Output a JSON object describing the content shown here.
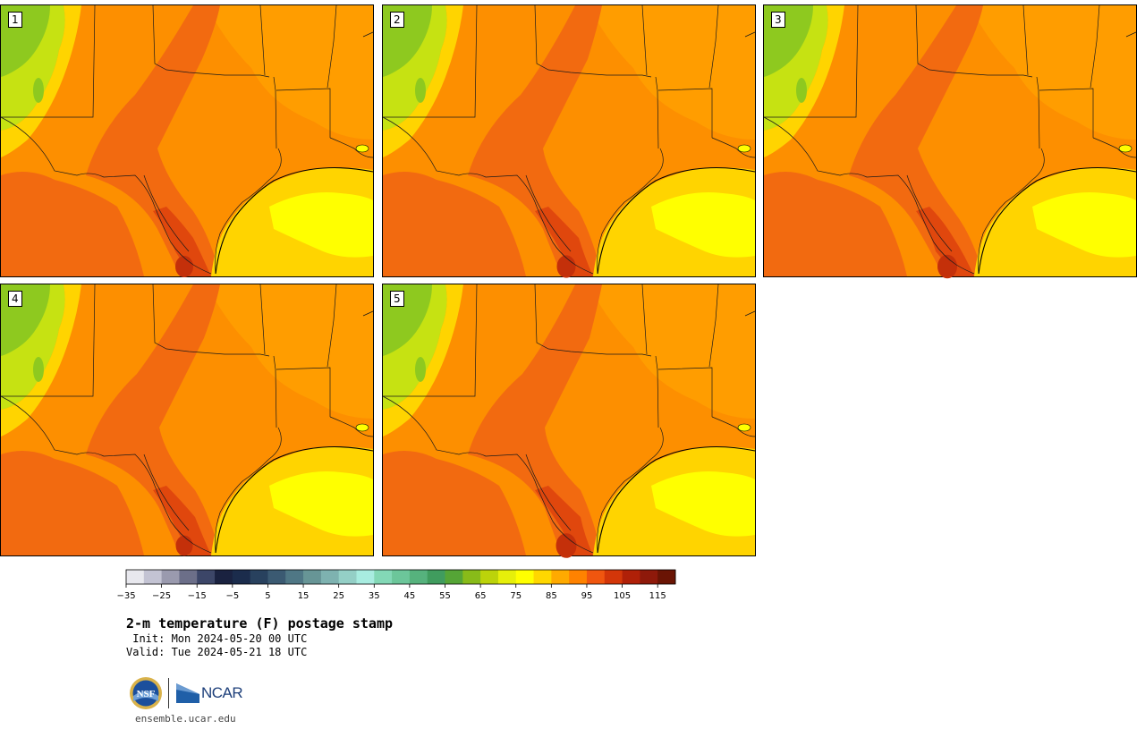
{
  "panels": [
    {
      "label": "1"
    },
    {
      "label": "2"
    },
    {
      "label": "3"
    },
    {
      "label": "4"
    },
    {
      "label": "5"
    }
  ],
  "colorbar": {
    "colors": [
      "#e8e8ee",
      "#c3c3d3",
      "#9a9aae",
      "#6c6f89",
      "#3c4668",
      "#1a2240",
      "#1b2c4c",
      "#28415e",
      "#3b5a72",
      "#4f7785",
      "#679596",
      "#7eb2b0",
      "#94cfc6",
      "#a8ece0",
      "#83d8b6",
      "#6cc69a",
      "#56b27d",
      "#409c5e",
      "#55a536",
      "#88bb19",
      "#bcd30a",
      "#e6ef0a",
      "#ffff00",
      "#ffd700",
      "#ffaa00",
      "#ff8200",
      "#f0560f",
      "#d33609",
      "#b02008",
      "#8e190a",
      "#6a1404"
    ],
    "ticks": [
      "−35",
      "−25",
      "−15",
      "−5",
      "5",
      "15",
      "25",
      "35",
      "45",
      "55",
      "65",
      "75",
      "85",
      "95",
      "105",
      "115"
    ]
  },
  "title": {
    "main": "2-m temperature (F) postage stamp",
    "init": " Init: Mon 2024-05-20 00 UTC",
    "valid": "Valid: Tue 2024-05-21 18 UTC"
  },
  "logos": {
    "nsf": "NSF",
    "ncar": "NCAR"
  },
  "footer": {
    "url": "ensemble.ucar.edu"
  },
  "map_colors": {
    "green": "#8ec91f",
    "lightgreen": "#c6e212",
    "yellow": "#ffff00",
    "gold": "#ffd400",
    "orange": "#fd8f00",
    "darkorange": "#f26a10",
    "red": "#e0470d",
    "darkred": "#c4300a"
  }
}
